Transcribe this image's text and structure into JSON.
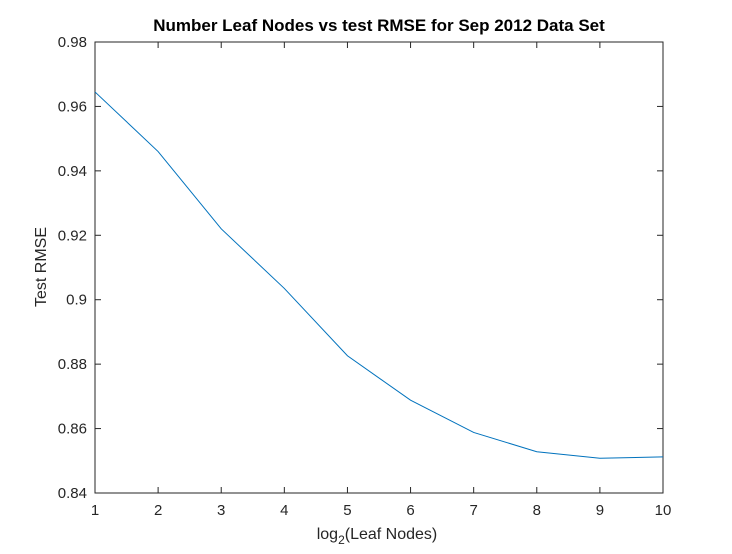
{
  "chart_data": {
    "type": "line",
    "title": "Number Leaf Nodes vs test RMSE for Sep 2012 Data Set",
    "xlabel_prefix": "log",
    "xlabel_subscript": "2",
    "xlabel_suffix": "(Leaf Nodes)",
    "ylabel": "Test RMSE",
    "xlim": [
      1,
      10
    ],
    "ylim": [
      0.84,
      0.98
    ],
    "xticks": [
      1,
      2,
      3,
      4,
      5,
      6,
      7,
      8,
      9,
      10
    ],
    "xtick_labels": [
      "1",
      "2",
      "3",
      "4",
      "5",
      "6",
      "7",
      "8",
      "9",
      "10"
    ],
    "yticks": [
      0.84,
      0.86,
      0.88,
      0.9,
      0.92,
      0.94,
      0.96,
      0.98
    ],
    "ytick_labels": [
      "0.84",
      "0.86",
      "0.88",
      "0.9",
      "0.92",
      "0.94",
      "0.96",
      "0.98"
    ],
    "grid": false,
    "line_color": "#0072BD",
    "series": [
      {
        "x": [
          1,
          2,
          3,
          4,
          5,
          6,
          7,
          8,
          9,
          10
        ],
        "values": [
          0.9645,
          0.946,
          0.922,
          0.9035,
          0.8826,
          0.8688,
          0.8588,
          0.8528,
          0.8508,
          0.8512
        ]
      }
    ]
  }
}
